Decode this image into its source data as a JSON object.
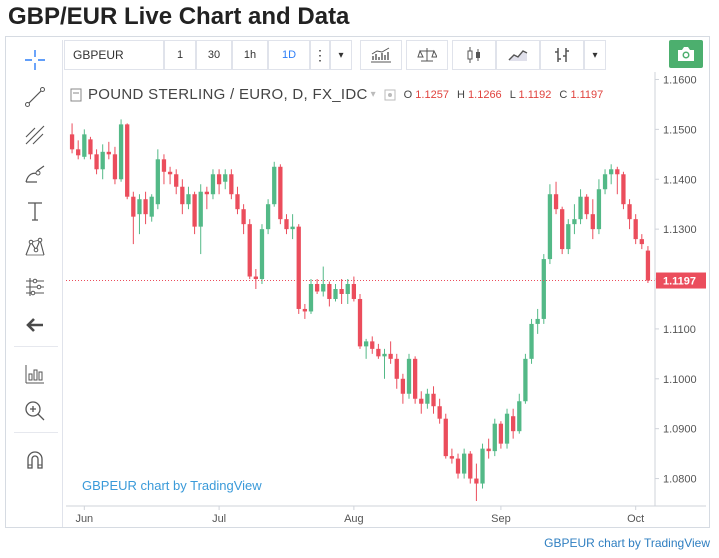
{
  "page": {
    "title": "GBP/EUR Live Chart and Data"
  },
  "toolbar": {
    "symbol": "GBPEUR",
    "intervals": [
      "1",
      "30",
      "1h",
      "1D"
    ],
    "active_interval": "1D",
    "menu_glyph": "⋮",
    "dropdown_glyph": "▾"
  },
  "legend": {
    "symbol": "POUND STERLING / EURO, D, FX_IDC",
    "open_label": "O",
    "open": "1.1257",
    "high_label": "H",
    "high": "1.1266",
    "low_label": "L",
    "low": "1.1192",
    "close_label": "C",
    "close": "1.1197"
  },
  "watermark": "GBPEUR chart by TradingView",
  "attribution": "GBPEUR chart by TradingView",
  "colors": {
    "up": "#53b987",
    "down": "#eb4d5c",
    "accent": "#2d7ef7",
    "price_tag": "#eb4d5c"
  },
  "left_tools": [
    "crosshair-icon",
    "trend-line-icon",
    "pitchfork-icon",
    "brush-icon",
    "text-icon",
    "pattern-icon",
    "prediction-icon",
    "back-arrow-icon",
    "indicators-icon",
    "zoom-icon",
    "magnet-icon"
  ],
  "chart_data": {
    "type": "candlestick",
    "title": "",
    "xlabel": "",
    "ylabel": "",
    "ylim": [
      1.0745,
      1.1615
    ],
    "y_ticks": [
      "1.1600",
      "1.1500",
      "1.1400",
      "1.1300",
      "1.1200",
      "1.1100",
      "1.1000",
      "1.0900",
      "1.0800"
    ],
    "x_ticks": [
      "Jun",
      "Jul",
      "Aug",
      "Sep",
      "Oct"
    ],
    "x_tick_positions": [
      2,
      24,
      46,
      70,
      92
    ],
    "last_price": "1.1197",
    "grid": false,
    "candles": [
      [
        1.149,
        1.1512,
        1.1452,
        1.146
      ],
      [
        1.146,
        1.1478,
        1.144,
        1.1448
      ],
      [
        1.1445,
        1.15,
        1.144,
        1.149
      ],
      [
        1.148,
        1.1485,
        1.144,
        1.145
      ],
      [
        1.145,
        1.146,
        1.141,
        1.142
      ],
      [
        1.142,
        1.147,
        1.14,
        1.1455
      ],
      [
        1.1455,
        1.1475,
        1.144,
        1.145
      ],
      [
        1.145,
        1.1465,
        1.139,
        1.14
      ],
      [
        1.14,
        1.152,
        1.1395,
        1.151
      ],
      [
        1.151,
        1.1512,
        1.136,
        1.1365
      ],
      [
        1.1365,
        1.1375,
        1.127,
        1.1325
      ],
      [
        1.133,
        1.137,
        1.129,
        1.136
      ],
      [
        1.136,
        1.1375,
        1.131,
        1.133
      ],
      [
        1.1325,
        1.137,
        1.1315,
        1.1365
      ],
      [
        1.135,
        1.146,
        1.134,
        1.144
      ],
      [
        1.144,
        1.145,
        1.139,
        1.1415
      ],
      [
        1.1415,
        1.1425,
        1.139,
        1.141
      ],
      [
        1.141,
        1.142,
        1.137,
        1.1385
      ],
      [
        1.1385,
        1.14,
        1.133,
        1.135
      ],
      [
        1.135,
        1.1385,
        1.134,
        1.137
      ],
      [
        1.137,
        1.1375,
        1.129,
        1.1305
      ],
      [
        1.1305,
        1.139,
        1.125,
        1.1375
      ],
      [
        1.1375,
        1.1385,
        1.134,
        1.137
      ],
      [
        1.137,
        1.142,
        1.136,
        1.141
      ],
      [
        1.141,
        1.142,
        1.137,
        1.139
      ],
      [
        1.1395,
        1.142,
        1.138,
        1.141
      ],
      [
        1.141,
        1.142,
        1.136,
        1.137
      ],
      [
        1.137,
        1.1385,
        1.133,
        1.134
      ],
      [
        1.134,
        1.135,
        1.129,
        1.131
      ],
      [
        1.131,
        1.132,
        1.12,
        1.1205
      ],
      [
        1.1205,
        1.122,
        1.118,
        1.12
      ],
      [
        1.12,
        1.131,
        1.119,
        1.13
      ],
      [
        1.13,
        1.136,
        1.129,
        1.135
      ],
      [
        1.135,
        1.1435,
        1.1345,
        1.1425
      ],
      [
        1.1425,
        1.143,
        1.131,
        1.132
      ],
      [
        1.132,
        1.133,
        1.129,
        1.13
      ],
      [
        1.13,
        1.133,
        1.128,
        1.1305
      ],
      [
        1.1305,
        1.131,
        1.113,
        1.114
      ],
      [
        1.114,
        1.115,
        1.112,
        1.1135
      ],
      [
        1.1135,
        1.12,
        1.113,
        1.119
      ],
      [
        1.119,
        1.12,
        1.117,
        1.1175
      ],
      [
        1.1175,
        1.1225,
        1.1165,
        1.119
      ],
      [
        1.119,
        1.1195,
        1.1145,
        1.116
      ],
      [
        1.116,
        1.119,
        1.1155,
        1.118
      ],
      [
        1.118,
        1.12,
        1.115,
        1.117
      ],
      [
        1.117,
        1.12,
        1.115,
        1.119
      ],
      [
        1.119,
        1.1205,
        1.1155,
        1.116
      ],
      [
        1.116,
        1.117,
        1.106,
        1.1065
      ],
      [
        1.1065,
        1.108,
        1.104,
        1.1075
      ],
      [
        1.1075,
        1.1085,
        1.105,
        1.106
      ],
      [
        1.106,
        1.107,
        1.104,
        1.1045
      ],
      [
        1.1045,
        1.106,
        1.1,
        1.105
      ],
      [
        1.105,
        1.1075,
        1.103,
        1.104
      ],
      [
        1.104,
        1.105,
        1.098,
        1.1
      ],
      [
        1.1,
        1.101,
        1.095,
        1.097
      ],
      [
        1.097,
        1.105,
        1.096,
        1.104
      ],
      [
        1.104,
        1.1045,
        1.095,
        1.096
      ],
      [
        1.096,
        1.0975,
        1.093,
        1.095
      ],
      [
        1.095,
        1.098,
        1.094,
        1.097
      ],
      [
        1.097,
        1.0985,
        1.093,
        1.0945
      ],
      [
        1.0945,
        1.096,
        1.091,
        1.092
      ],
      [
        1.092,
        1.093,
        1.084,
        1.0845
      ],
      [
        1.0845,
        1.086,
        1.083,
        1.084
      ],
      [
        1.084,
        1.085,
        1.08,
        1.081
      ],
      [
        1.081,
        1.086,
        1.08,
        1.085
      ],
      [
        1.085,
        1.0855,
        1.079,
        1.08
      ],
      [
        1.08,
        1.083,
        1.0755,
        1.079
      ],
      [
        1.079,
        1.087,
        1.078,
        1.086
      ],
      [
        1.086,
        1.088,
        1.084,
        1.0855
      ],
      [
        1.0855,
        1.092,
        1.0845,
        1.091
      ],
      [
        1.091,
        1.0915,
        1.086,
        1.087
      ],
      [
        1.087,
        1.094,
        1.086,
        1.093
      ],
      [
        1.0925,
        1.094,
        1.088,
        1.0895
      ],
      [
        1.0895,
        1.097,
        1.089,
        1.0955
      ],
      [
        1.0955,
        1.105,
        1.095,
        1.104
      ],
      [
        1.104,
        1.112,
        1.103,
        1.111
      ],
      [
        1.111,
        1.114,
        1.109,
        1.112
      ],
      [
        1.112,
        1.125,
        1.111,
        1.124
      ],
      [
        1.124,
        1.139,
        1.123,
        1.137
      ],
      [
        1.137,
        1.1395,
        1.133,
        1.134
      ],
      [
        1.134,
        1.1345,
        1.125,
        1.126
      ],
      [
        1.126,
        1.132,
        1.125,
        1.131
      ],
      [
        1.131,
        1.135,
        1.129,
        1.132
      ],
      [
        1.132,
        1.138,
        1.131,
        1.1365
      ],
      [
        1.1365,
        1.137,
        1.132,
        1.133
      ],
      [
        1.133,
        1.136,
        1.128,
        1.13
      ],
      [
        1.13,
        1.14,
        1.129,
        1.138
      ],
      [
        1.138,
        1.142,
        1.137,
        1.141
      ],
      [
        1.141,
        1.143,
        1.139,
        1.142
      ],
      [
        1.142,
        1.1425,
        1.137,
        1.141
      ],
      [
        1.141,
        1.1415,
        1.134,
        1.135
      ],
      [
        1.135,
        1.136,
        1.13,
        1.132
      ],
      [
        1.132,
        1.133,
        1.127,
        1.128
      ],
      [
        1.128,
        1.129,
        1.126,
        1.127
      ],
      [
        1.1257,
        1.1266,
        1.1192,
        1.1197
      ]
    ]
  }
}
